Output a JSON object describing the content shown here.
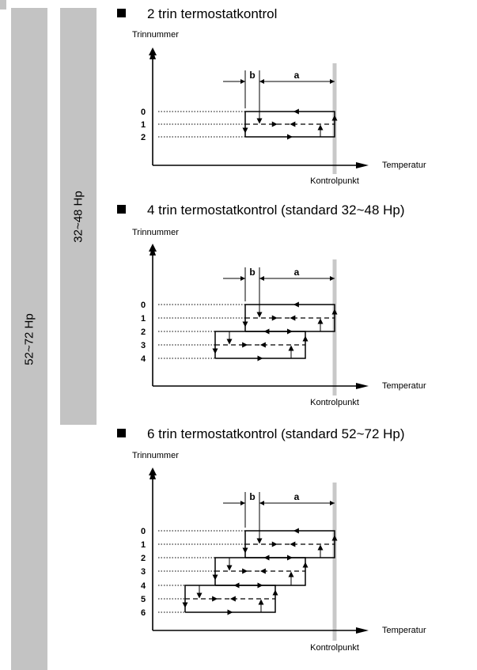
{
  "bars": {
    "outer_label": "52~72 Hp",
    "inner_label": "32~48 Hp"
  },
  "sections": [
    {
      "title": "2 trin termostatkontrol",
      "y_axis_label": "Trinnummer",
      "x_axis_label": "Temperatur",
      "control_point_label": "Kontrolpunkt",
      "dim_b": "b",
      "dim_a": "a",
      "steps": [
        "0",
        "1",
        "2"
      ]
    },
    {
      "title": "4 trin termostatkontrol (standard 32~48 Hp)",
      "y_axis_label": "Trinnummer",
      "x_axis_label": "Temperatur",
      "control_point_label": "Kontrolpunkt",
      "dim_b": "b",
      "dim_a": "a",
      "steps": [
        "0",
        "1",
        "2",
        "3",
        "4"
      ]
    },
    {
      "title": "6 trin termostatkontrol (standard 52~72 Hp)",
      "y_axis_label": "Trinnummer",
      "x_axis_label": "Temperatur",
      "control_point_label": "Kontrolpunkt",
      "dim_b": "b",
      "dim_a": "a",
      "steps": [
        "0",
        "1",
        "2",
        "3",
        "4",
        "5",
        "6"
      ]
    }
  ]
}
